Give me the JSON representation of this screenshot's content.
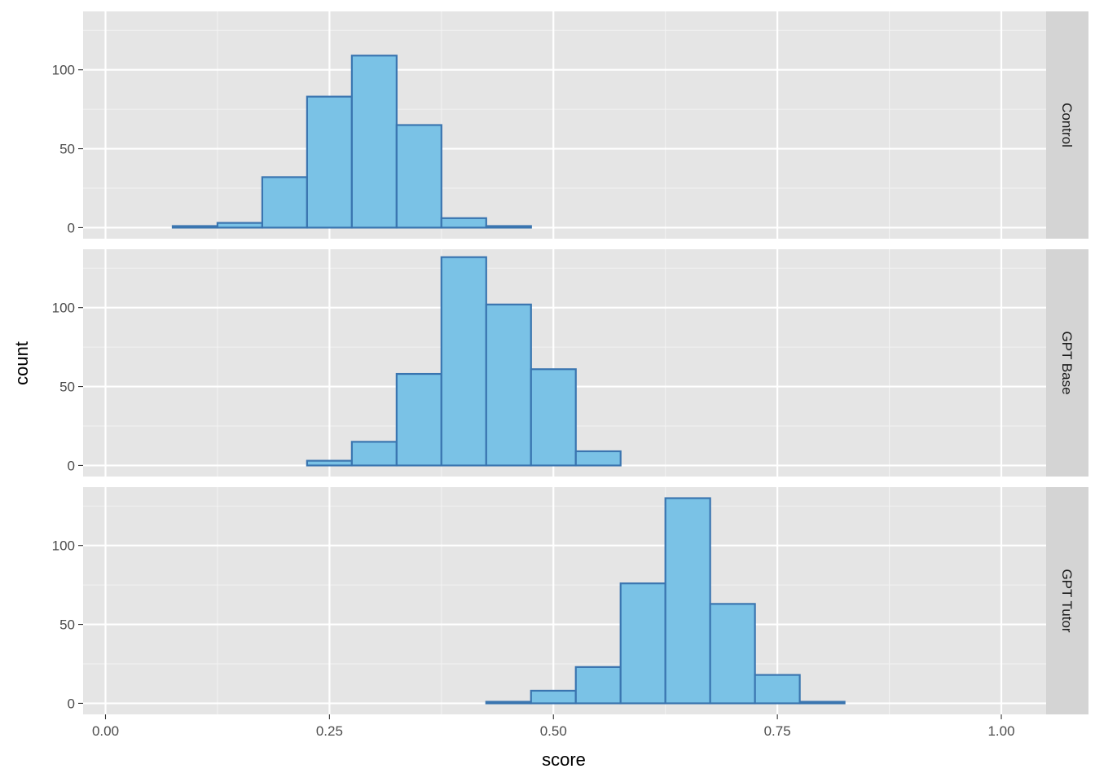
{
  "chart_data": {
    "type": "bar",
    "subtype": "faceted-histogram",
    "xlabel": "score",
    "ylabel": "count",
    "xlim": [
      -0.025,
      1.05
    ],
    "ylim": [
      -7,
      137
    ],
    "x_ticks": [
      0.0,
      0.25,
      0.5,
      0.75,
      1.0
    ],
    "x_tick_labels": [
      "0.00",
      "0.25",
      "0.50",
      "0.75",
      "1.00"
    ],
    "y_ticks": [
      0,
      50,
      100
    ],
    "y_tick_labels": [
      "0",
      "50",
      "100"
    ],
    "bin_width": 0.05,
    "bin_centers": [
      0.05,
      0.1,
      0.15,
      0.2,
      0.25,
      0.3,
      0.35,
      0.4,
      0.45,
      0.5,
      0.55,
      0.6,
      0.65,
      0.7,
      0.75,
      0.8,
      0.85,
      0.9,
      0.95
    ],
    "fill_color": "#7AC2E6",
    "outline_color": "#3A75B0",
    "panel_background": "#E5E5E5",
    "strip_background": "#D4D4D4",
    "grid": true,
    "facet_position": "right",
    "series": [
      {
        "name": "Control",
        "values": [
          0,
          1,
          3,
          32,
          83,
          109,
          65,
          6,
          1,
          0,
          0,
          0,
          0,
          0,
          0,
          0,
          0,
          0,
          0
        ]
      },
      {
        "name": "GPT Base",
        "values": [
          0,
          0,
          0,
          0,
          3,
          15,
          58,
          132,
          102,
          61,
          9,
          0,
          0,
          0,
          0,
          0,
          0,
          0,
          0
        ]
      },
      {
        "name": "GPT Tutor",
        "values": [
          0,
          0,
          0,
          0,
          0,
          0,
          0,
          0,
          1,
          8,
          23,
          76,
          130,
          63,
          18,
          1,
          0,
          0,
          0
        ]
      }
    ]
  }
}
